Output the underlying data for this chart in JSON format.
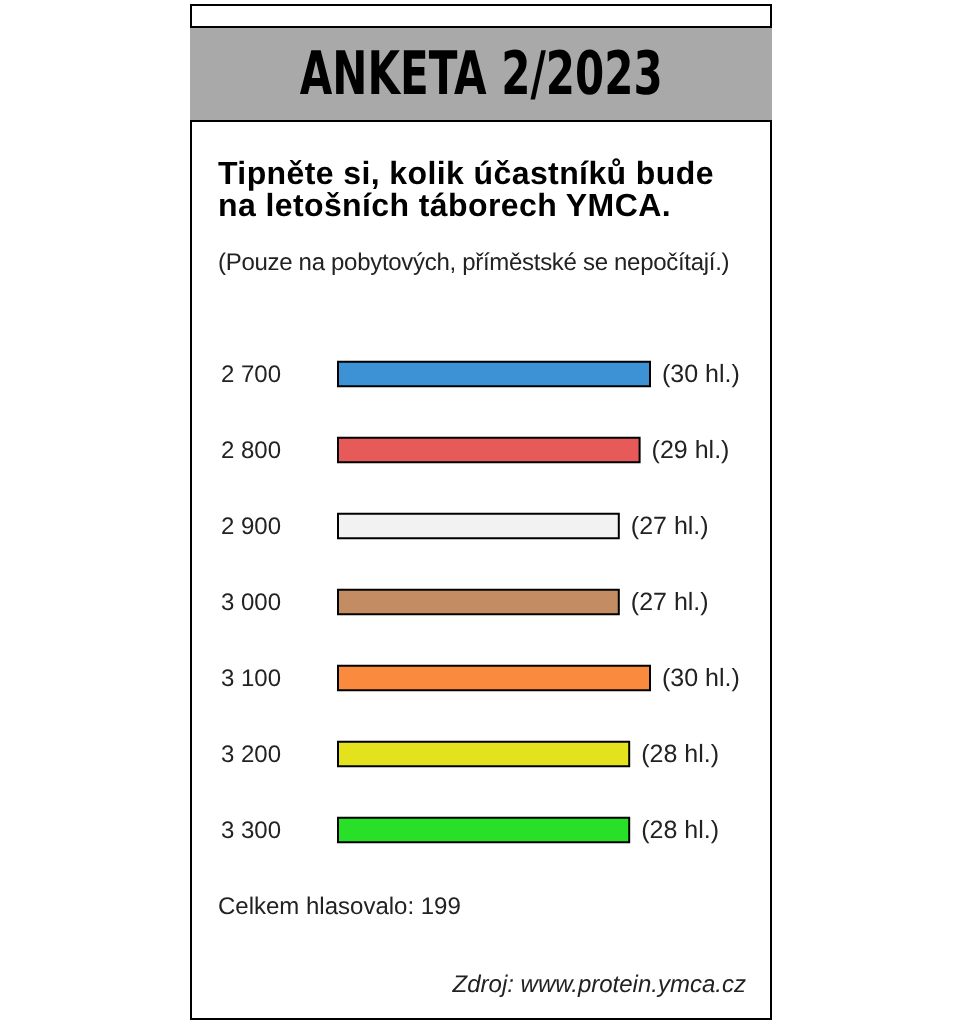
{
  "chart_data": {
    "type": "bar",
    "orientation": "horizontal",
    "title": "ANKETA 2/2023",
    "subtitle": "Tipněte si, kolik účastníků bude na letošních táborech YMCA.",
    "annotations": [
      "(Pouze na pobytových, příměstské se nepočítají.)",
      "Celkem hlasovalo: 199",
      "Zdroj: www.protein.ymca.cz"
    ],
    "categories": [
      "2 700",
      "2 800",
      "2 900",
      "3 000",
      "3 100",
      "3 200",
      "3 300"
    ],
    "values": [
      30,
      29,
      27,
      27,
      30,
      28,
      28
    ],
    "value_labels": [
      "(30 hl.)",
      "(29 hl.)",
      "(27 hl.)",
      "(27 hl.)",
      "(30 hl.)",
      "(28 hl.)",
      "(28 hl.)"
    ],
    "colors": [
      "#3d92d6",
      "#e65a5a",
      "#f2f2f2",
      "#c48c62",
      "#f98a3e",
      "#e4e21c",
      "#28e028"
    ],
    "xlim": [
      0,
      30
    ]
  }
}
